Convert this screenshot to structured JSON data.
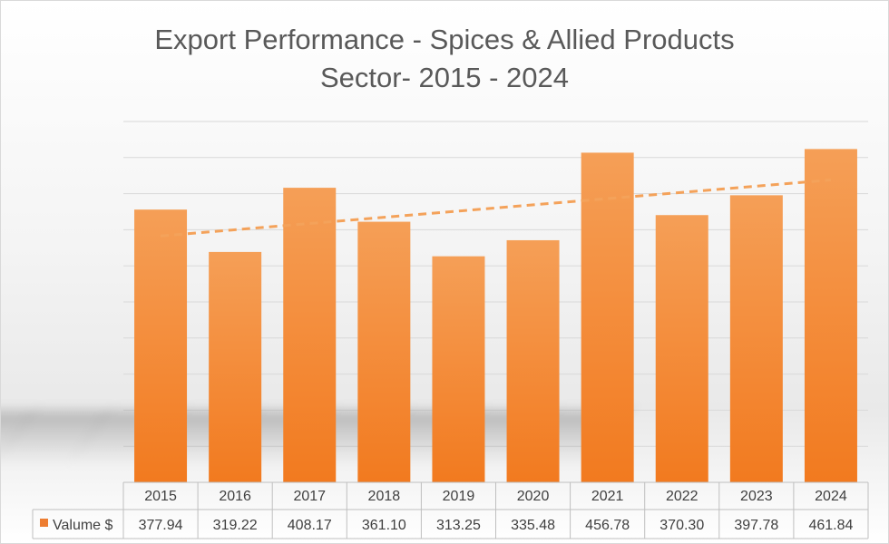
{
  "chart_data": {
    "type": "bar",
    "title_line1": "Export Performance - Spices & Allied Products",
    "title_line2": "Sector- 2015 - 2024",
    "categories": [
      "2015",
      "2016",
      "2017",
      "2018",
      "2019",
      "2020",
      "2021",
      "2022",
      "2023",
      "2024"
    ],
    "series": [
      {
        "name": "Valume $",
        "values": [
          377.94,
          319.22,
          408.17,
          361.1,
          313.25,
          335.48,
          456.78,
          370.3,
          397.78,
          461.84
        ],
        "labels": [
          "377.94",
          "319.22",
          "408.17",
          "361.10",
          "313.25",
          "335.48",
          "456.78",
          "370.30",
          "397.78",
          "461.84"
        ]
      }
    ],
    "ylim": [
      0,
      500
    ],
    "grid": true,
    "data_table": true,
    "trendline": "linear, dashed",
    "colors": {
      "bar": "#ed7d31",
      "bar_light": "#f4a25a",
      "trend": "#f4a25a",
      "grid": "#d9d9d9",
      "text": "#404040"
    }
  }
}
